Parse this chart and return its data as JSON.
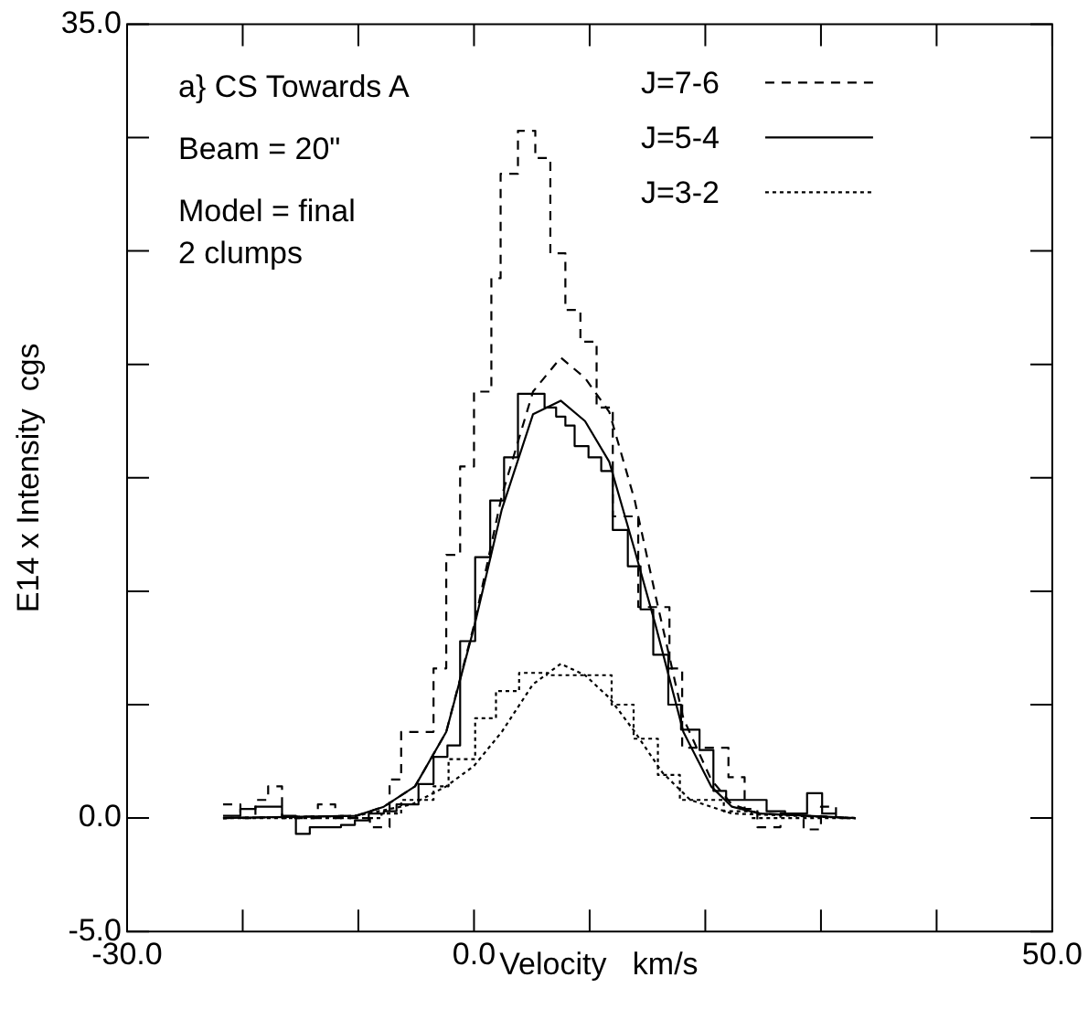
{
  "chart_data": {
    "type": "line",
    "xlabel": "Velocity   km/s",
    "ylabel": "E14 x Intensity  cgs",
    "xlim": [
      -30,
      50
    ],
    "ylim": [
      -5,
      35
    ],
    "xticks": [
      {
        "value": -30,
        "label": "-30.0"
      },
      {
        "value": -20,
        "label": null
      },
      {
        "value": -10,
        "label": null
      },
      {
        "value": 0,
        "label": "0.0"
      },
      {
        "value": 10,
        "label": null
      },
      {
        "value": 20,
        "label": null
      },
      {
        "value": 30,
        "label": null
      },
      {
        "value": 40,
        "label": null
      },
      {
        "value": 50,
        "label": "50.0"
      }
    ],
    "yticks": [
      {
        "value": -5,
        "label": "-5.0"
      },
      {
        "value": 0,
        "label": "0.0"
      },
      {
        "value": 5,
        "label": null
      },
      {
        "value": 10,
        "label": null
      },
      {
        "value": 15,
        "label": null
      },
      {
        "value": 20,
        "label": null
      },
      {
        "value": 25,
        "label": null
      },
      {
        "value": 30,
        "label": null
      },
      {
        "value": 35,
        "label": "35.0"
      }
    ],
    "grid": false,
    "legend": "top right",
    "marker": "none",
    "annotations": [
      "a} CS Towards A",
      "Beam = 20\"",
      "Model = final",
      "2 clumps"
    ],
    "series": [
      {
        "name": "J=7-6",
        "type": "step",
        "line_style": "dashed",
        "color": "#000000",
        "x": [
          -21.7,
          -20.2,
          -18.9,
          -17.8,
          -16.6,
          -13.5,
          -12.0,
          -9.0,
          -7.3,
          -6.3,
          -3.5,
          -2.4,
          -1.2,
          0,
          1.5,
          2.3,
          3.8,
          5.3,
          6.6,
          7.9,
          9.2,
          10.6,
          12.0,
          14.2,
          16.9,
          18.0,
          22.0,
          23.4,
          24.5,
          26.5,
          28.5,
          30.0,
          31.3,
          33.0
        ],
        "values": [
          0.6,
          0,
          0.8,
          1.4,
          0,
          0.6,
          0,
          -0.4,
          1.7,
          3.8,
          6.6,
          11.6,
          15.5,
          18.8,
          23.8,
          28.4,
          30.3,
          29.1,
          24.9,
          22.4,
          21.0,
          18.1,
          13.3,
          9.3,
          6.6,
          3.1,
          1.8,
          0.4,
          -0.4,
          0.2,
          -0.5,
          0.5,
          0,
          0
        ]
      },
      {
        "name": "J=5-4",
        "type": "step",
        "line_style": "solid",
        "color": "#000000",
        "x": [
          -21.7,
          -20.2,
          -18.9,
          -16.6,
          -15.4,
          -14.2,
          -11.5,
          -10.3,
          -9.1,
          -7.8,
          -6.7,
          -4.8,
          -3.5,
          -2.3,
          -1.2,
          0.1,
          1.4,
          2.6,
          3.8,
          6.1,
          7.1,
          7.9,
          8.7,
          9.9,
          11.0,
          12.0,
          13.3,
          14.4,
          15.5,
          16.8,
          17.9,
          19.5,
          20.7,
          21.8,
          25.3,
          26.9,
          28.8,
          30.1,
          31.3
        ],
        "values": [
          0.1,
          0.4,
          0.5,
          0.1,
          -0.7,
          -0.4,
          -0.3,
          -0.1,
          0.2,
          0.3,
          0.6,
          1.5,
          2.7,
          3.2,
          7.8,
          11.5,
          14.0,
          15.9,
          18.7,
          18.1,
          17.7,
          17.3,
          16.4,
          15.9,
          15.3,
          12.7,
          11.1,
          9.2,
          7.2,
          5.0,
          3.9,
          3.0,
          1.2,
          0.8,
          0.3,
          0.2,
          1.1,
          0.2,
          0.2
        ]
      },
      {
        "name": "J=3-2",
        "type": "step",
        "line_style": "dotted",
        "color": "#000000",
        "x": [
          -21.7,
          -8.0,
          -6.3,
          -3.5,
          -2.2,
          0.1,
          1.9,
          3.9,
          6.3,
          11.9,
          13.8,
          15.9,
          17.8,
          21.6,
          24.0,
          33.0
        ],
        "values": [
          0,
          0.2,
          0.8,
          1.4,
          2.6,
          4.4,
          5.6,
          6.4,
          6.3,
          5.0,
          3.5,
          1.9,
          0.8,
          0.3,
          0,
          0
        ]
      },
      {
        "type": "line",
        "line_style": "dashed",
        "color": "#000000",
        "x": [
          -21.7,
          -10.2,
          -7.8,
          -5.1,
          -2.4,
          0,
          2.4,
          5.1,
          7.5,
          9.6,
          11.7,
          13.9,
          15.7,
          18.1,
          20.5,
          22.3,
          24.7,
          33.0
        ],
        "values": [
          0,
          0.1,
          0.5,
          1.4,
          3.8,
          8.5,
          14.2,
          18.8,
          20.3,
          19.4,
          17.9,
          14.0,
          9.8,
          4.4,
          1.7,
          0.6,
          0.2,
          0
        ]
      },
      {
        "type": "line",
        "line_style": "solid",
        "color": "#000000",
        "x": [
          -21.7,
          -10.2,
          -7.8,
          -5.1,
          -2.4,
          0,
          2.4,
          5.1,
          7.5,
          9.6,
          11.7,
          13.9,
          15.7,
          18.1,
          20.5,
          22.3,
          24.7,
          33.0
        ],
        "values": [
          0,
          0.1,
          0.5,
          1.4,
          3.8,
          8.4,
          13.6,
          17.8,
          18.4,
          17.5,
          15.7,
          11.8,
          8.5,
          3.8,
          1.4,
          0.5,
          0.2,
          0
        ]
      },
      {
        "type": "line",
        "line_style": "dotted",
        "color": "#000000",
        "x": [
          -21.7,
          -10.2,
          -5.4,
          -2.4,
          0,
          2.4,
          5.1,
          7.5,
          9.6,
          11.7,
          13.9,
          16.3,
          18.7,
          22.3,
          33.0
        ],
        "values": [
          0,
          0.1,
          0.6,
          1.4,
          2.3,
          3.8,
          5.9,
          6.8,
          6.3,
          5.3,
          3.8,
          2.0,
          0.8,
          0.2,
          0
        ]
      }
    ]
  }
}
